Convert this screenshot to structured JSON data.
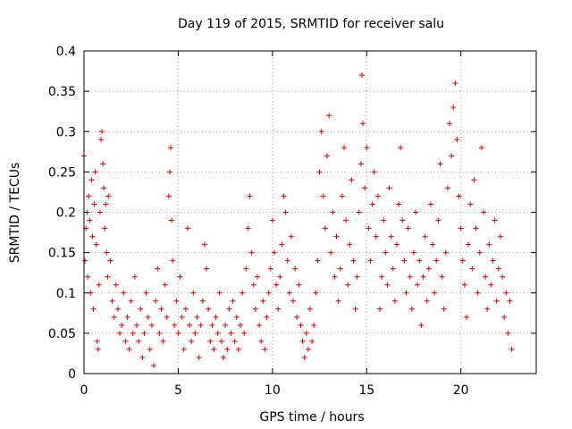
{
  "chart_data": {
    "type": "scatter",
    "title": "Day 119 of 2015, SRMTID for receiver salu",
    "xlabel": "GPS time / hours",
    "ylabel": "SRMTID / TECUs",
    "xlim": [
      0,
      24
    ],
    "ylim": [
      0,
      0.4
    ],
    "x_ticks": [
      0,
      5,
      10,
      15,
      20
    ],
    "x_tick_labels": [
      "0",
      "5",
      "10",
      "15",
      "20"
    ],
    "y_ticks": [
      0,
      0.05,
      0.1,
      0.15,
      0.2,
      0.25,
      0.3,
      0.35,
      0.4
    ],
    "y_tick_labels": [
      "0",
      "0.05",
      "0.1",
      "0.15",
      "0.2",
      "0.25",
      "0.3",
      "0.35",
      "0.4"
    ],
    "grid": true,
    "marker": "+",
    "marker_color": "#e00000",
    "series": [
      {
        "name": "SRMTID",
        "points": [
          [
            0.0,
            0.27
          ],
          [
            0.05,
            0.14
          ],
          [
            0.1,
            0.18
          ],
          [
            0.15,
            0.2
          ],
          [
            0.2,
            0.12
          ],
          [
            0.25,
            0.22
          ],
          [
            0.3,
            0.19
          ],
          [
            0.35,
            0.1
          ],
          [
            0.4,
            0.24
          ],
          [
            0.45,
            0.17
          ],
          [
            0.5,
            0.08
          ],
          [
            0.55,
            0.21
          ],
          [
            0.6,
            0.25
          ],
          [
            0.65,
            0.16
          ],
          [
            0.7,
            0.04
          ],
          [
            0.75,
            0.03
          ],
          [
            0.8,
            0.11
          ],
          [
            0.85,
            0.2
          ],
          [
            0.9,
            0.29
          ],
          [
            0.95,
            0.3
          ],
          [
            1.0,
            0.26
          ],
          [
            1.05,
            0.23
          ],
          [
            1.1,
            0.18
          ],
          [
            1.15,
            0.21
          ],
          [
            1.2,
            0.15
          ],
          [
            1.25,
            0.12
          ],
          [
            1.3,
            0.22
          ],
          [
            1.4,
            0.14
          ],
          [
            1.5,
            0.09
          ],
          [
            1.6,
            0.07
          ],
          [
            1.7,
            0.11
          ],
          [
            1.8,
            0.08
          ],
          [
            1.9,
            0.05
          ],
          [
            2.0,
            0.06
          ],
          [
            2.1,
            0.1
          ],
          [
            2.2,
            0.04
          ],
          [
            2.3,
            0.07
          ],
          [
            2.4,
            0.03
          ],
          [
            2.5,
            0.09
          ],
          [
            2.6,
            0.05
          ],
          [
            2.7,
            0.12
          ],
          [
            2.8,
            0.06
          ],
          [
            2.9,
            0.04
          ],
          [
            3.0,
            0.08
          ],
          [
            3.1,
            0.02
          ],
          [
            3.2,
            0.05
          ],
          [
            3.3,
            0.1
          ],
          [
            3.4,
            0.07
          ],
          [
            3.5,
            0.03
          ],
          [
            3.6,
            0.06
          ],
          [
            3.7,
            0.01
          ],
          [
            3.8,
            0.09
          ],
          [
            3.9,
            0.13
          ],
          [
            4.0,
            0.05
          ],
          [
            4.1,
            0.08
          ],
          [
            4.2,
            0.04
          ],
          [
            4.3,
            0.11
          ],
          [
            4.4,
            0.07
          ],
          [
            4.5,
            0.22
          ],
          [
            4.55,
            0.25
          ],
          [
            4.6,
            0.28
          ],
          [
            4.65,
            0.19
          ],
          [
            4.7,
            0.14
          ],
          [
            4.8,
            0.06
          ],
          [
            4.9,
            0.09
          ],
          [
            5.0,
            0.05
          ],
          [
            5.1,
            0.12
          ],
          [
            5.2,
            0.07
          ],
          [
            5.3,
            0.03
          ],
          [
            5.4,
            0.08
          ],
          [
            5.5,
            0.18
          ],
          [
            5.6,
            0.06
          ],
          [
            5.7,
            0.04
          ],
          [
            5.8,
            0.1
          ],
          [
            5.9,
            0.05
          ],
          [
            6.0,
            0.07
          ],
          [
            6.1,
            0.02
          ],
          [
            6.2,
            0.06
          ],
          [
            6.3,
            0.09
          ],
          [
            6.4,
            0.16
          ],
          [
            6.5,
            0.13
          ],
          [
            6.6,
            0.08
          ],
          [
            6.7,
            0.04
          ],
          [
            6.8,
            0.06
          ],
          [
            6.9,
            0.03
          ],
          [
            7.0,
            0.07
          ],
          [
            7.1,
            0.05
          ],
          [
            7.2,
            0.1
          ],
          [
            7.3,
            0.04
          ],
          [
            7.4,
            0.02
          ],
          [
            7.5,
            0.06
          ],
          [
            7.6,
            0.03
          ],
          [
            7.7,
            0.08
          ],
          [
            7.8,
            0.05
          ],
          [
            7.9,
            0.09
          ],
          [
            8.0,
            0.04
          ],
          [
            8.1,
            0.07
          ],
          [
            8.2,
            0.03
          ],
          [
            8.3,
            0.06
          ],
          [
            8.4,
            0.1
          ],
          [
            8.5,
            0.05
          ],
          [
            8.6,
            0.13
          ],
          [
            8.7,
            0.18
          ],
          [
            8.8,
            0.22
          ],
          [
            8.9,
            0.15
          ],
          [
            9.0,
            0.11
          ],
          [
            9.1,
            0.08
          ],
          [
            9.2,
            0.12
          ],
          [
            9.3,
            0.06
          ],
          [
            9.4,
            0.04
          ],
          [
            9.5,
            0.09
          ],
          [
            9.6,
            0.03
          ],
          [
            9.7,
            0.07
          ],
          [
            9.8,
            0.1
          ],
          [
            9.9,
            0.13
          ],
          [
            10.0,
            0.19
          ],
          [
            10.1,
            0.15
          ],
          [
            10.2,
            0.11
          ],
          [
            10.3,
            0.08
          ],
          [
            10.4,
            0.12
          ],
          [
            10.5,
            0.16
          ],
          [
            10.6,
            0.22
          ],
          [
            10.7,
            0.2
          ],
          [
            10.8,
            0.14
          ],
          [
            10.9,
            0.1
          ],
          [
            11.0,
            0.17
          ],
          [
            11.1,
            0.09
          ],
          [
            11.2,
            0.13
          ],
          [
            11.3,
            0.07
          ],
          [
            11.4,
            0.11
          ],
          [
            11.5,
            0.06
          ],
          [
            11.6,
            0.04
          ],
          [
            11.7,
            0.02
          ],
          [
            11.8,
            0.05
          ],
          [
            11.9,
            0.03
          ],
          [
            12.0,
            0.08
          ],
          [
            12.1,
            0.04
          ],
          [
            12.2,
            0.06
          ],
          [
            12.3,
            0.1
          ],
          [
            12.4,
            0.14
          ],
          [
            12.5,
            0.25
          ],
          [
            12.6,
            0.3
          ],
          [
            12.7,
            0.22
          ],
          [
            12.8,
            0.18
          ],
          [
            12.9,
            0.27
          ],
          [
            13.0,
            0.32
          ],
          [
            13.1,
            0.15
          ],
          [
            13.2,
            0.2
          ],
          [
            13.3,
            0.12
          ],
          [
            13.4,
            0.17
          ],
          [
            13.5,
            0.09
          ],
          [
            13.6,
            0.13
          ],
          [
            13.7,
            0.22
          ],
          [
            13.8,
            0.28
          ],
          [
            13.9,
            0.19
          ],
          [
            14.0,
            0.11
          ],
          [
            14.1,
            0.16
          ],
          [
            14.2,
            0.24
          ],
          [
            14.3,
            0.14
          ],
          [
            14.4,
            0.08
          ],
          [
            14.5,
            0.12
          ],
          [
            14.6,
            0.2
          ],
          [
            14.7,
            0.26
          ],
          [
            14.75,
            0.37
          ],
          [
            14.8,
            0.31
          ],
          [
            14.9,
            0.23
          ],
          [
            15.0,
            0.28
          ],
          [
            15.1,
            0.18
          ],
          [
            15.2,
            0.14
          ],
          [
            15.3,
            0.21
          ],
          [
            15.4,
            0.25
          ],
          [
            15.5,
            0.17
          ],
          [
            15.6,
            0.22
          ],
          [
            15.7,
            0.08
          ],
          [
            15.8,
            0.12
          ],
          [
            15.9,
            0.19
          ],
          [
            16.0,
            0.15
          ],
          [
            16.1,
            0.11
          ],
          [
            16.2,
            0.23
          ],
          [
            16.3,
            0.17
          ],
          [
            16.4,
            0.13
          ],
          [
            16.5,
            0.09
          ],
          [
            16.6,
            0.16
          ],
          [
            16.7,
            0.21
          ],
          [
            16.8,
            0.28
          ],
          [
            16.9,
            0.19
          ],
          [
            17.0,
            0.14
          ],
          [
            17.1,
            0.1
          ],
          [
            17.2,
            0.18
          ],
          [
            17.3,
            0.12
          ],
          [
            17.4,
            0.08
          ],
          [
            17.5,
            0.15
          ],
          [
            17.6,
            0.2
          ],
          [
            17.7,
            0.11
          ],
          [
            17.8,
            0.14
          ],
          [
            17.9,
            0.06
          ],
          [
            18.0,
            0.12
          ],
          [
            18.1,
            0.17
          ],
          [
            18.2,
            0.09
          ],
          [
            18.3,
            0.13
          ],
          [
            18.4,
            0.21
          ],
          [
            18.5,
            0.16
          ],
          [
            18.6,
            0.1
          ],
          [
            18.7,
            0.14
          ],
          [
            18.8,
            0.19
          ],
          [
            18.9,
            0.26
          ],
          [
            19.0,
            0.12
          ],
          [
            19.1,
            0.08
          ],
          [
            19.2,
            0.15
          ],
          [
            19.3,
            0.23
          ],
          [
            19.4,
            0.31
          ],
          [
            19.5,
            0.27
          ],
          [
            19.6,
            0.33
          ],
          [
            19.7,
            0.36
          ],
          [
            19.8,
            0.29
          ],
          [
            19.9,
            0.22
          ],
          [
            20.0,
            0.18
          ],
          [
            20.1,
            0.14
          ],
          [
            20.2,
            0.11
          ],
          [
            20.3,
            0.07
          ],
          [
            20.4,
            0.16
          ],
          [
            20.5,
            0.21
          ],
          [
            20.6,
            0.13
          ],
          [
            20.7,
            0.24
          ],
          [
            20.8,
            0.18
          ],
          [
            20.9,
            0.1
          ],
          [
            21.0,
            0.15
          ],
          [
            21.1,
            0.28
          ],
          [
            21.2,
            0.2
          ],
          [
            21.3,
            0.12
          ],
          [
            21.4,
            0.08
          ],
          [
            21.5,
            0.16
          ],
          [
            21.6,
            0.11
          ],
          [
            21.7,
            0.14
          ],
          [
            21.8,
            0.19
          ],
          [
            21.9,
            0.09
          ],
          [
            22.0,
            0.13
          ],
          [
            22.1,
            0.17
          ],
          [
            22.2,
            0.12
          ],
          [
            22.3,
            0.07
          ],
          [
            22.4,
            0.1
          ],
          [
            22.5,
            0.05
          ],
          [
            22.6,
            0.09
          ],
          [
            22.7,
            0.03
          ]
        ]
      }
    ]
  }
}
